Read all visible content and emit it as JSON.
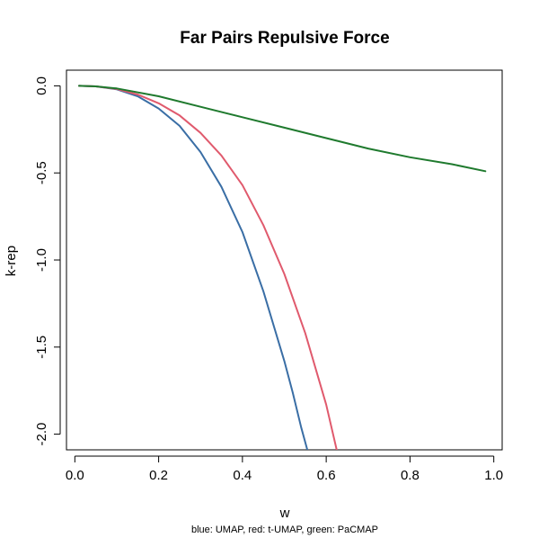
{
  "chart_data": {
    "type": "line",
    "title": "Far Pairs Repulsive Force",
    "xlabel": "w",
    "ylabel": "k-rep",
    "caption": "blue: UMAP, red: t-UMAP, green: PaCMAP",
    "xlim": [
      -0.02,
      1.02
    ],
    "ylim": [
      -2.09,
      0.09
    ],
    "x_ticks": [
      0.0,
      0.2,
      0.4,
      0.6,
      0.8,
      1.0
    ],
    "x_tick_labels": [
      "0.0",
      "0.2",
      "0.4",
      "0.6",
      "0.8",
      "1.0"
    ],
    "y_ticks": [
      0.0,
      -0.5,
      -1.0,
      -1.5,
      -2.0
    ],
    "y_tick_labels": [
      "0.0",
      "-0.5",
      "-1.0",
      "-1.5",
      "-2.0"
    ],
    "grid": false,
    "series": [
      {
        "name": "UMAP",
        "color": "#3a6ea5",
        "x": [
          0.01,
          0.05,
          0.1,
          0.15,
          0.2,
          0.25,
          0.3,
          0.35,
          0.4,
          0.45,
          0.5,
          0.52,
          0.54,
          0.555
        ],
        "y": [
          0.0,
          -0.003,
          -0.02,
          -0.06,
          -0.13,
          -0.23,
          -0.38,
          -0.58,
          -0.84,
          -1.18,
          -1.58,
          -1.76,
          -1.96,
          -2.09
        ]
      },
      {
        "name": "t-UMAP",
        "color": "#e05a6d",
        "x": [
          0.01,
          0.05,
          0.1,
          0.15,
          0.2,
          0.25,
          0.3,
          0.35,
          0.4,
          0.45,
          0.5,
          0.55,
          0.6,
          0.625
        ],
        "y": [
          0.0,
          -0.003,
          -0.018,
          -0.05,
          -0.1,
          -0.17,
          -0.27,
          -0.4,
          -0.57,
          -0.8,
          -1.08,
          -1.42,
          -1.83,
          -2.09
        ]
      },
      {
        "name": "PaCMAP",
        "color": "#1f7a2e",
        "x": [
          0.01,
          0.05,
          0.1,
          0.2,
          0.3,
          0.4,
          0.5,
          0.6,
          0.7,
          0.8,
          0.9,
          0.98
        ],
        "y": [
          0.0,
          -0.003,
          -0.015,
          -0.06,
          -0.12,
          -0.18,
          -0.24,
          -0.3,
          -0.36,
          -0.41,
          -0.45,
          -0.49
        ]
      }
    ]
  }
}
